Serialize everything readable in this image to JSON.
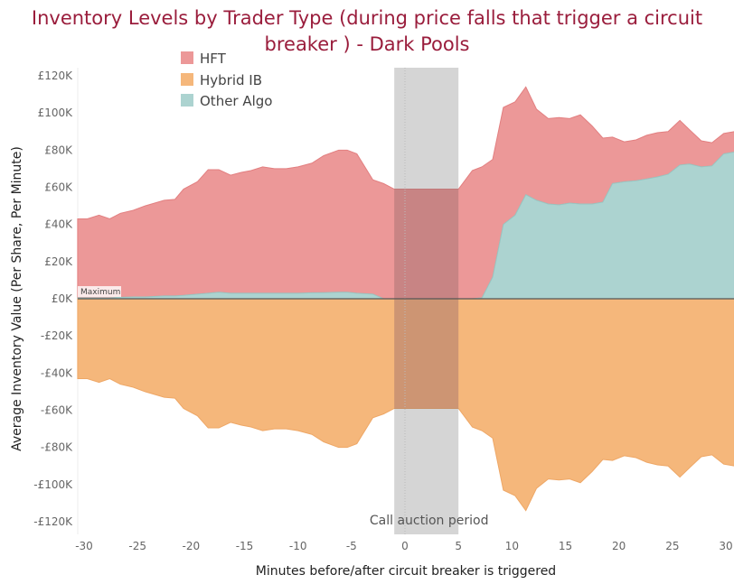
{
  "chart_data": {
    "type": "area",
    "title": "Inventory Levels by Trader Type (during price falls that trigger a circuit breaker ) - Dark Pools",
    "xlabel": "Minutes before/after circuit breaker is triggered",
    "ylabel": "Average Inventory Value (Per Share, Per Minute)",
    "xlim": [
      -30.6,
      30.8
    ],
    "ylim": [
      -120,
      120
    ],
    "x_ticks": [
      "-30",
      "-25",
      "-20",
      "-15",
      "-10",
      "-5",
      "0",
      "5",
      "10",
      "15",
      "20",
      "25",
      "30"
    ],
    "x_tick_values": [
      -30,
      -25,
      -20,
      -15,
      -10,
      -5,
      0,
      5,
      10,
      15,
      20,
      25,
      30
    ],
    "y_ticks": [
      "£120K",
      "£100K",
      "£80K",
      "£60K",
      "£40K",
      "£20K",
      "£0K",
      "-£20K",
      "-£40K",
      "-£60K",
      "-£80K",
      "-£100K",
      "-£120K"
    ],
    "y_tick_values": [
      120,
      100,
      80,
      60,
      40,
      20,
      0,
      -20,
      -40,
      -60,
      -80,
      -100,
      -120
    ],
    "units": "thousands GBP",
    "stacked": true,
    "x": [
      -30.6,
      -29.7,
      -28.6,
      -27.6,
      -26.6,
      -25.4,
      -24.3,
      -22.5,
      -21.5,
      -20.7,
      -19.4,
      -18.4,
      -17.4,
      -16.3,
      -15.3,
      -14.4,
      -13.3,
      -12.2,
      -11.1,
      -10,
      -8.7,
      -7.6,
      -6.2,
      -5.4,
      -4.5,
      -3,
      -2,
      -1,
      5,
      6.3,
      7.2,
      8.2,
      9.2,
      10.3,
      11.3,
      12.3,
      13.4,
      14.4,
      15.4,
      16.4,
      17.5,
      18.5,
      19.4,
      20.5,
      21.6,
      22.6,
      23.6,
      24.6,
      25.7,
      26.6,
      27.7,
      28.7,
      29.8,
      30.8
    ],
    "series": [
      {
        "name": "Other Algo",
        "color": "#acd3d0",
        "values": [
          0.5,
          0.5,
          0.5,
          0.5,
          0.8,
          1,
          1,
          1.5,
          1.5,
          1.8,
          2.5,
          3,
          3.5,
          3,
          3,
          3,
          3,
          3,
          3,
          3,
          3.2,
          3.3,
          3.5,
          3.5,
          3,
          2.5,
          0,
          0,
          0,
          0,
          0.5,
          11.7,
          40,
          45,
          56,
          53,
          51,
          50.5,
          51.5,
          51,
          51,
          52,
          62,
          63,
          63.5,
          64.5,
          65.6,
          67,
          72,
          72.5,
          71,
          71.5,
          78,
          79
        ]
      },
      {
        "name": "HFT",
        "color": "#ec9898",
        "values": [
          42.5,
          42.5,
          44.5,
          42.5,
          45.2,
          46.6,
          49,
          51.5,
          52,
          57.2,
          60.5,
          66.5,
          66,
          63.5,
          65,
          66,
          68,
          67,
          67,
          68,
          69.8,
          73.7,
          76.5,
          76.5,
          75,
          61.5,
          62,
          59,
          59,
          69,
          70.5,
          63.3,
          63,
          61,
          58,
          49,
          46,
          47,
          45.5,
          48,
          42,
          34.5,
          25,
          21.5,
          22,
          23.5,
          23.8,
          23,
          24,
          18.5,
          14,
          12.5,
          11,
          11
        ]
      },
      {
        "name": "Hybrid IB",
        "color": "#f5b77b",
        "values": [
          -43,
          -43,
          -45,
          -43,
          -46,
          -47.6,
          -50,
          -53,
          -53.5,
          -59,
          -63,
          -69.5,
          -69.5,
          -66.5,
          -68,
          -69,
          -71,
          -70,
          -70,
          -71,
          -73,
          -77,
          -80,
          -80,
          -78,
          -64,
          -62,
          -59,
          -59,
          -69,
          -71,
          -75,
          -103,
          -106,
          -114,
          -102,
          -97,
          -97.5,
          -97,
          -99,
          -93,
          -86.5,
          -87,
          -84.5,
          -85.5,
          -88,
          -89.4,
          -90,
          -96,
          -91,
          -85,
          -84,
          -89,
          -90
        ]
      }
    ],
    "legend": {
      "placement": "top-left",
      "entries": [
        "HFT",
        "Hybrid IB",
        "Other Algo"
      ]
    },
    "annotations": {
      "reference_label": "Maximum",
      "band_label": "Call auction period",
      "band_range": [
        -1,
        5
      ],
      "band_level": 59
    }
  }
}
